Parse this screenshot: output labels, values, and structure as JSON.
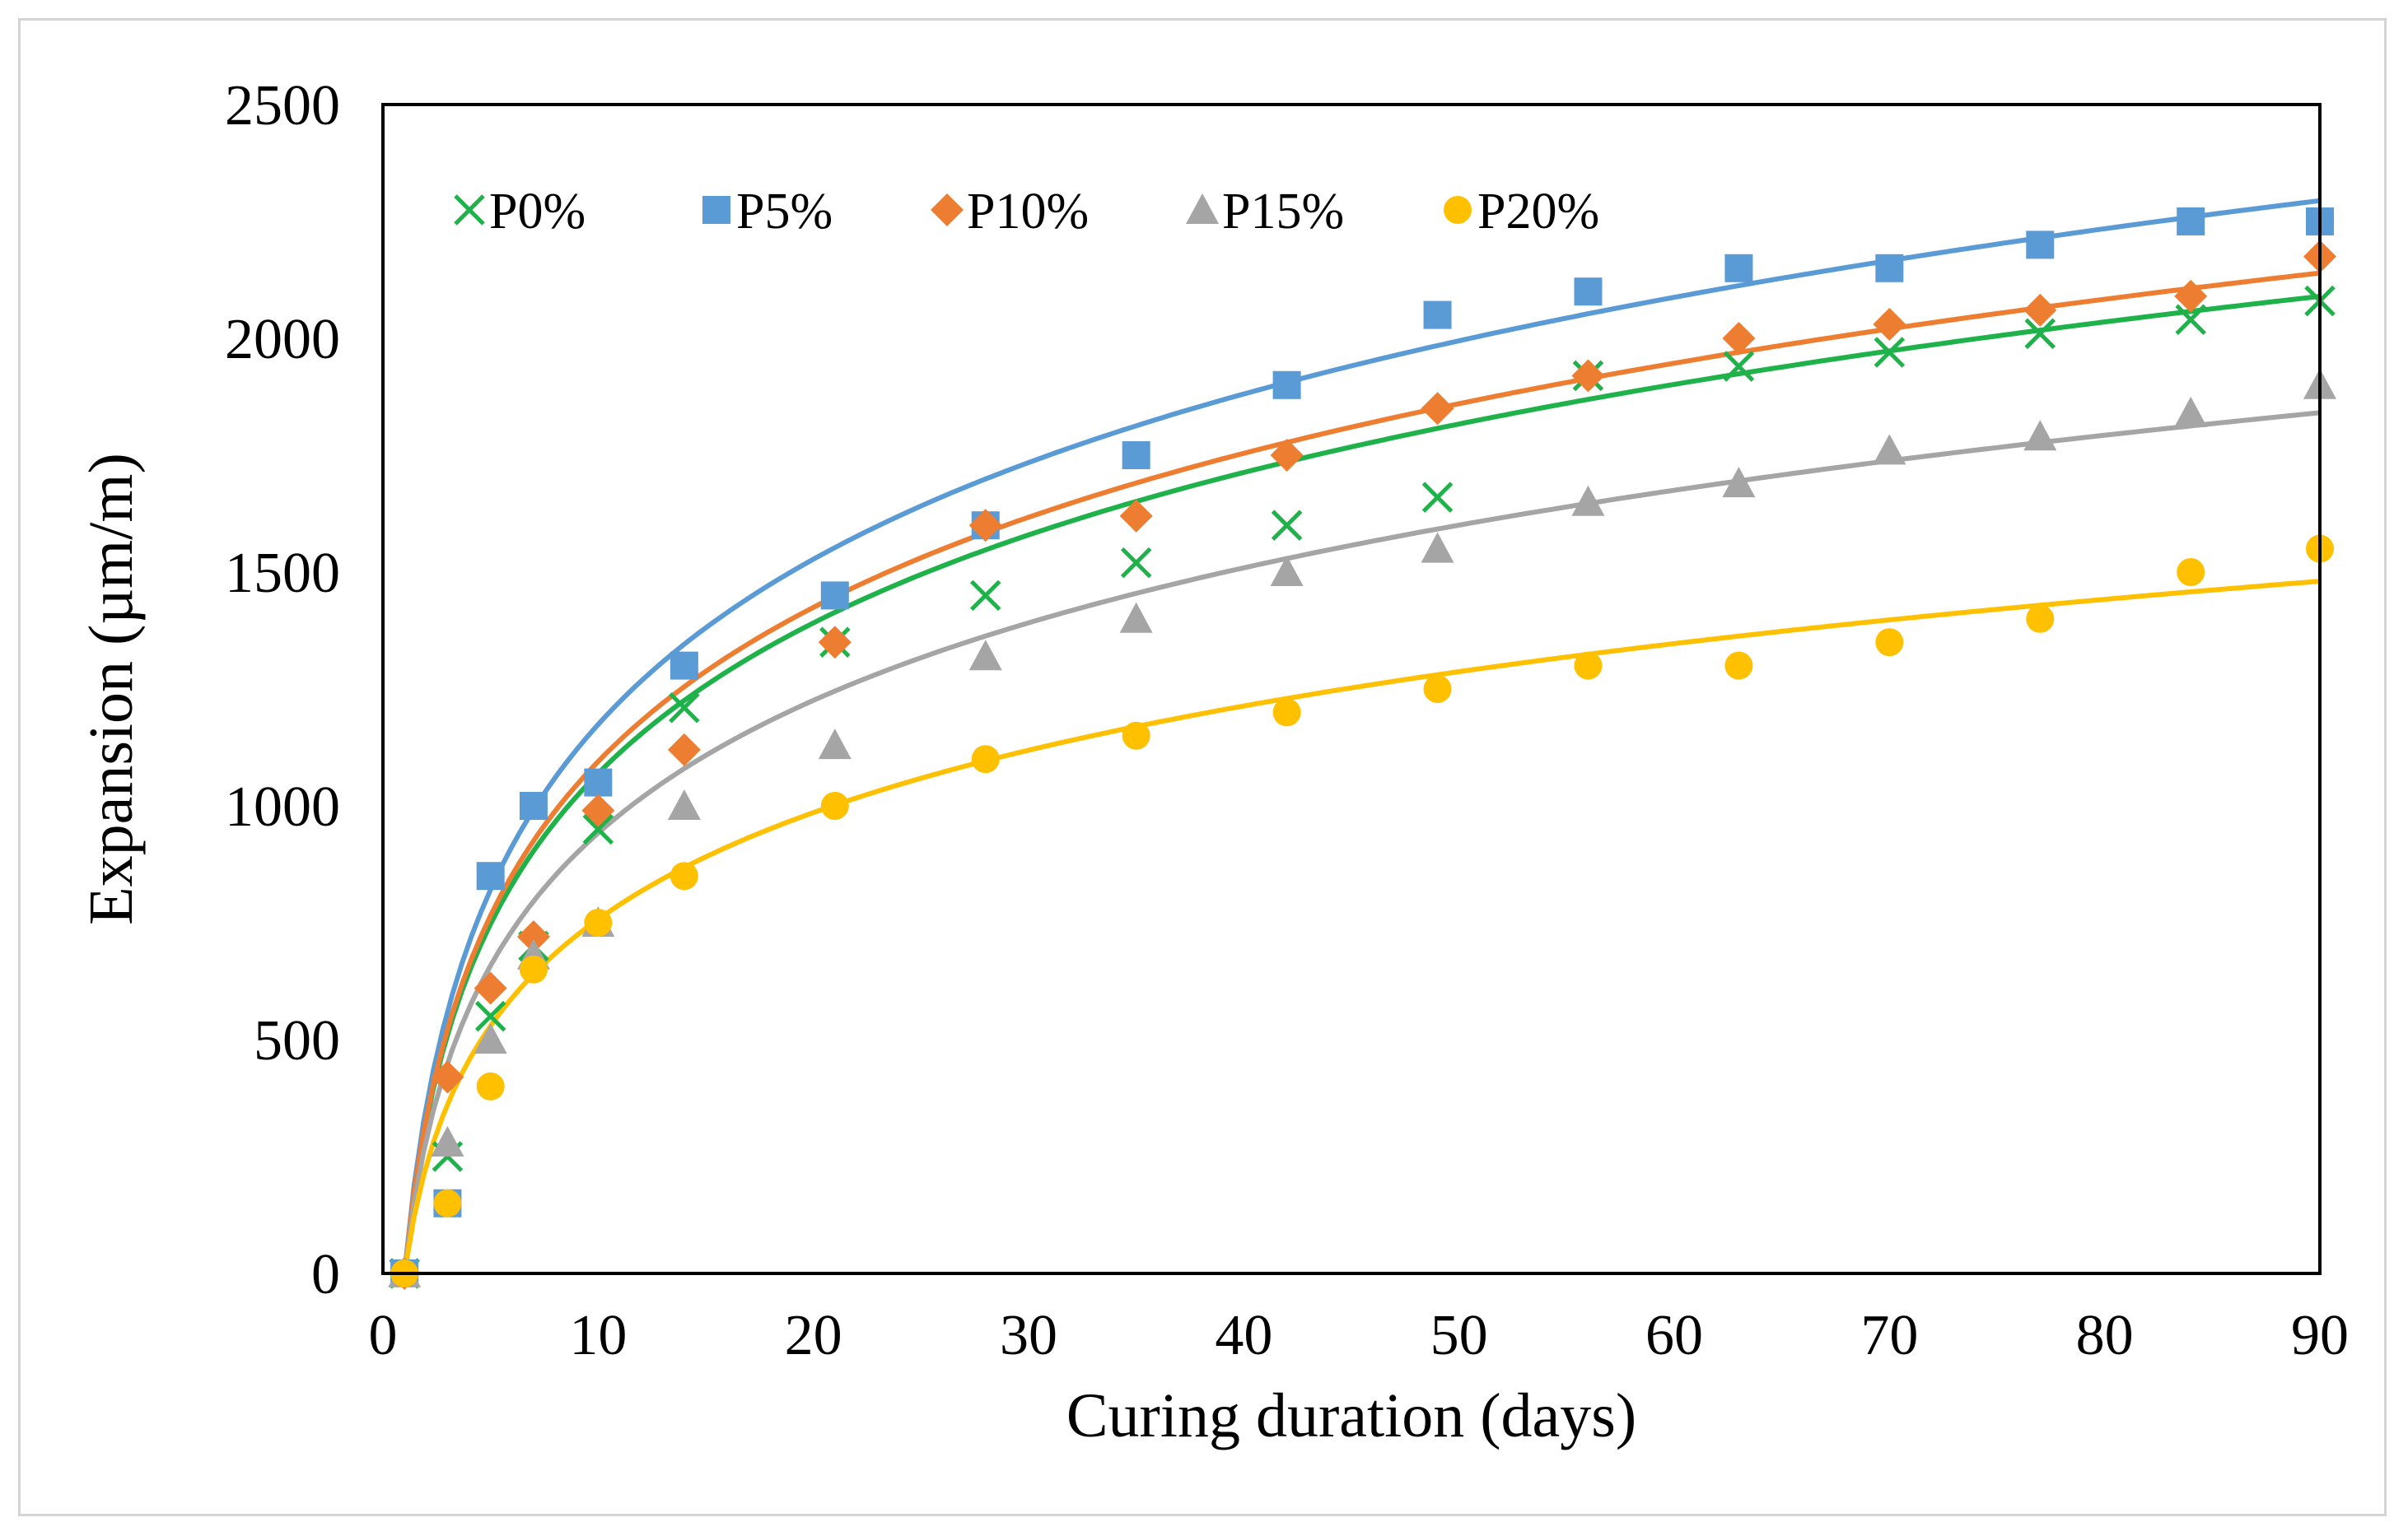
{
  "chart_data": {
    "type": "scatter",
    "title": "",
    "xlabel": "Curing duration (days)",
    "ylabel": "Expansion (µm/m)",
    "xlim": [
      0,
      90
    ],
    "ylim": [
      0,
      2500
    ],
    "xticks": [
      0,
      10,
      20,
      30,
      40,
      50,
      60,
      70,
      80,
      90
    ],
    "yticks": [
      0,
      500,
      1000,
      1500,
      2000,
      2500
    ],
    "grid": false,
    "legend_position": "top-left-inside",
    "trendline": "logarithmic",
    "x": [
      1,
      3,
      5,
      7,
      10,
      14,
      21,
      28,
      35,
      42,
      49,
      56,
      63,
      70,
      77,
      84,
      90
    ],
    "series": [
      {
        "name": "P0%",
        "marker": "x",
        "color": "#1fb24a",
        "values": [
          0,
          250,
          550,
          700,
          950,
          1210,
          1350,
          1450,
          1520,
          1600,
          1660,
          1920,
          1940,
          1970,
          2010,
          2040,
          2080
        ],
        "fit": {
          "a": 464.4,
          "b": 0
        }
      },
      {
        "name": "P5%",
        "marker": "square",
        "color": "#5b9bd5",
        "values": [
          0,
          150,
          850,
          1000,
          1050,
          1300,
          1450,
          1600,
          1750,
          1900,
          2050,
          2100,
          2150,
          2150,
          2200,
          2250,
          2250
        ],
        "fit": {
          "a": 509.9,
          "b": 0
        }
      },
      {
        "name": "P10%",
        "marker": "diamond",
        "color": "#ed7d31",
        "values": [
          0,
          420,
          610,
          720,
          990,
          1120,
          1350,
          1600,
          1620,
          1750,
          1850,
          1920,
          2000,
          2030,
          2060,
          2090,
          2175
        ],
        "fit": {
          "a": 475.5,
          "b": 0
        }
      },
      {
        "name": "P15%",
        "marker": "triangle",
        "color": "#a5a5a5",
        "values": [
          0,
          280,
          500,
          680,
          750,
          1000,
          1130,
          1320,
          1400,
          1500,
          1550,
          1650,
          1690,
          1760,
          1790,
          1840,
          1900
        ],
        "fit": {
          "a": 409.1,
          "b": 0
        }
      },
      {
        "name": "P20%",
        "marker": "circle",
        "color": "#ffc000",
        "values": [
          0,
          150,
          400,
          650,
          750,
          850,
          1000,
          1100,
          1150,
          1200,
          1250,
          1300,
          1300,
          1350,
          1400,
          1500,
          1550
        ],
        "fit": {
          "a": 329.0,
          "b": 0
        }
      }
    ]
  }
}
